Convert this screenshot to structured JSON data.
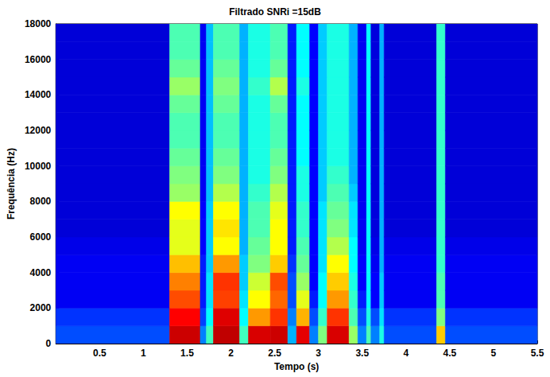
{
  "chart_data": {
    "type": "heatmap",
    "title": "Filtrado SNRi =15dB",
    "x_label": "Tempo (s)",
    "y_label": "Frequência (Hz)",
    "xlim": [
      0,
      5.5
    ],
    "xticks": [
      0.5,
      1,
      1.5,
      2,
      2.5,
      3,
      3.5,
      4,
      4.5,
      5,
      5.5
    ],
    "ylim": [
      0,
      18000
    ],
    "yticks": [
      0,
      2000,
      4000,
      6000,
      8000,
      10000,
      12000,
      14000,
      16000,
      18000
    ],
    "grid": false,
    "x_edges": [
      0,
      1.3,
      1.65,
      1.72,
      1.8,
      2.1,
      2.2,
      2.45,
      2.65,
      2.75,
      2.9,
      3.0,
      3.1,
      3.35,
      3.45,
      3.55,
      3.6,
      3.7,
      3.75,
      4.35,
      4.45,
      5.5
    ],
    "y_edges": [
      0,
      1000,
      2000,
      3000,
      4000,
      5000,
      6000,
      7000,
      8000,
      9000,
      10000,
      11000,
      12000,
      13000,
      14000,
      15000,
      16000,
      17000,
      18000
    ],
    "zlim": [
      0,
      10
    ],
    "z": [
      [
        2.6,
        2.4,
        1.8,
        1.8,
        1.8,
        1.6,
        1.3,
        1.3,
        1.3,
        1.3,
        1.3,
        1.3,
        1.3,
        1.3,
        1.3,
        1.3,
        1.3,
        1.3
      ],
      [
        8.8,
        8,
        7.4,
        7,
        6.5,
        5.8,
        5.8,
        6,
        5.2,
        5,
        4.8,
        4.6,
        4.6,
        4.8,
        5.2,
        4.8,
        4.6,
        4.6
      ],
      [
        3,
        2.5,
        2.2,
        2.2,
        2.2,
        2,
        2,
        2,
        1.8,
        1.8,
        1.8,
        1.8,
        1.8,
        1.8,
        1.8,
        1.8,
        1.8,
        1.8
      ],
      [
        4.5,
        4,
        3.8,
        3.8,
        3.6,
        3.6,
        3.6,
        3.6,
        3.5,
        3.5,
        3.5,
        3.5,
        3.5,
        3.5,
        3.5,
        3.5,
        3.5,
        3.5
      ],
      [
        9,
        8.5,
        7.5,
        7.6,
        6.8,
        6,
        6.2,
        6,
        5.4,
        5,
        4.8,
        4.6,
        4.6,
        4.8,
        5,
        4.8,
        4.6,
        4.6
      ],
      [
        4.5,
        4,
        3.8,
        3.6,
        3.6,
        3.4,
        3.4,
        3.4,
        3.4,
        3.4,
        3.4,
        3.4,
        3.4,
        3.4,
        3.4,
        3.4,
        3.4,
        3.4
      ],
      [
        8.6,
        6.8,
        6,
        5.6,
        5,
        4.8,
        4.6,
        4.6,
        4.4,
        4.2,
        4.2,
        4.2,
        4.2,
        4.2,
        4.4,
        4.2,
        4.2,
        4.2
      ],
      [
        8.8,
        7.6,
        7.2,
        7.4,
        6.4,
        6,
        6,
        5.8,
        5.4,
        5,
        4.8,
        4.6,
        4.6,
        4.8,
        5.4,
        4.8,
        4.6,
        4.6
      ],
      [
        3.4,
        3,
        2.6,
        2.6,
        2.4,
        2.2,
        2.2,
        2.2,
        2.2,
        2.2,
        2.2,
        2.2,
        2.2,
        2.2,
        2.2,
        2.2,
        2.2,
        2.2
      ],
      [
        8.4,
        6.6,
        5.8,
        5.2,
        4.8,
        4.6,
        4.4,
        4.4,
        4.2,
        4.2,
        4,
        4,
        4,
        4,
        4.2,
        4,
        4,
        4
      ],
      [
        3,
        2.6,
        2.2,
        2,
        2,
        2,
        2,
        2,
        2,
        2,
        2,
        2,
        2,
        2,
        2,
        2,
        2,
        2
      ],
      [
        5,
        4.4,
        4,
        4,
        3.8,
        3.8,
        3.8,
        3.8,
        3.6,
        3.6,
        3.6,
        3.6,
        3.6,
        3.6,
        3.6,
        3.6,
        3.6,
        3.6
      ],
      [
        8.6,
        7.6,
        6.8,
        6.4,
        6,
        5.4,
        5,
        4.8,
        4.6,
        4.4,
        4.2,
        4.2,
        4.2,
        4.2,
        4.2,
        4.2,
        4.2,
        4.2
      ],
      [
        5.2,
        4.6,
        4.4,
        4.2,
        4,
        4,
        3.8,
        3.8,
        3.6,
        3.4,
        3.4,
        3.4,
        3.4,
        3.4,
        3.4,
        3.4,
        3.4,
        3.4
      ],
      [
        3,
        2.6,
        2.2,
        2,
        2,
        1.8,
        1.8,
        1.8,
        1.8,
        1.8,
        1.8,
        1.8,
        1.8,
        1.8,
        1.8,
        1.8,
        1.8,
        1.8
      ],
      [
        4.6,
        4.2,
        4,
        4,
        4,
        4,
        4,
        4,
        4,
        4,
        4,
        4,
        4,
        4,
        4,
        4,
        4,
        4
      ],
      [
        3,
        2.6,
        2,
        2,
        1.8,
        1.6,
        1.4,
        1.4,
        1.4,
        1.4,
        1.4,
        1.4,
        1.4,
        1.4,
        1.4,
        1.4,
        1.4,
        1.4
      ],
      [
        4.2,
        3.8,
        3.6,
        3.6,
        3.4,
        3.4,
        3.4,
        3.4,
        3.4,
        3.4,
        3.4,
        3.4,
        3.4,
        3.4,
        3.4,
        3.4,
        3.4,
        3.4
      ],
      [
        2.6,
        2.4,
        1.8,
        1.8,
        1.8,
        1.6,
        1.3,
        1.3,
        1.3,
        1.3,
        1.3,
        1.3,
        1.3,
        1.3,
        1.3,
        1.3,
        1.3,
        1.3
      ],
      [
        6.4,
        5,
        4.6,
        4.6,
        4.4,
        4.4,
        4.4,
        4.4,
        4.4,
        4.4,
        4.4,
        4.4,
        4.4,
        4.4,
        4.4,
        4.4,
        4.4,
        4.4
      ],
      [
        2.6,
        2.4,
        1.8,
        1.8,
        1.8,
        1.6,
        1.3,
        1.3,
        1.3,
        1.3,
        1.3,
        1.3,
        1.3,
        1.3,
        1.3,
        1.3,
        1.3,
        1.3
      ]
    ]
  }
}
